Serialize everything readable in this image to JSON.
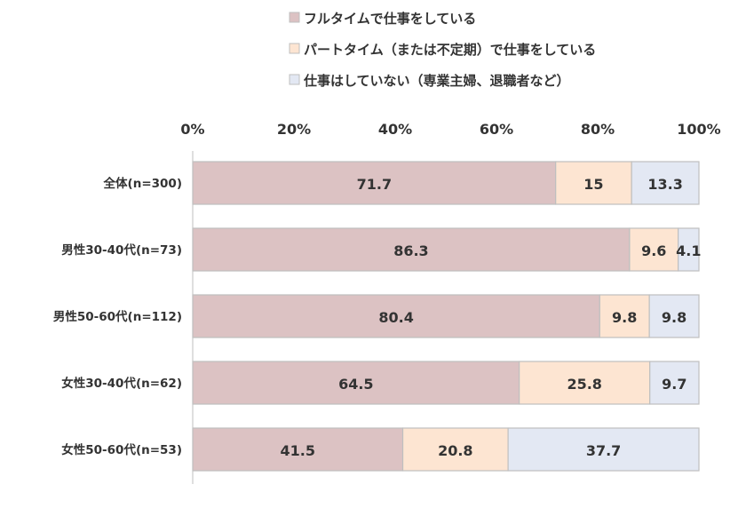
{
  "chart_data": {
    "type": "bar",
    "orientation": "horizontal",
    "stacked": true,
    "percent": true,
    "categories": [
      "全体(n=300)",
      "男性30-40代(n=73)",
      "男性50-60代(n=112)",
      "女性30-40代(n=62)",
      "女性50-60代(n=53)"
    ],
    "series": [
      {
        "name": "フルタイムで仕事をしている",
        "color": "#dcc2c3",
        "values": [
          71.7,
          86.3,
          80.4,
          64.5,
          41.5
        ]
      },
      {
        "name": "パートタイム（または不定期）で仕事をしている",
        "color": "#fde5d2",
        "values": [
          15.0,
          9.6,
          9.8,
          25.8,
          20.8
        ]
      },
      {
        "name": "仕事はしていない（専業主婦、退職者など）",
        "color": "#e3e8f3",
        "values": [
          13.3,
          4.1,
          9.8,
          9.7,
          37.7
        ]
      }
    ],
    "xlim": [
      0,
      100
    ],
    "xticks": [
      "0%",
      "20%",
      "40%",
      "60%",
      "80%",
      "100%"
    ],
    "xtick_position": "top",
    "legend_position": "top",
    "grid": false,
    "bar_border_color": "#bfbfbf"
  }
}
